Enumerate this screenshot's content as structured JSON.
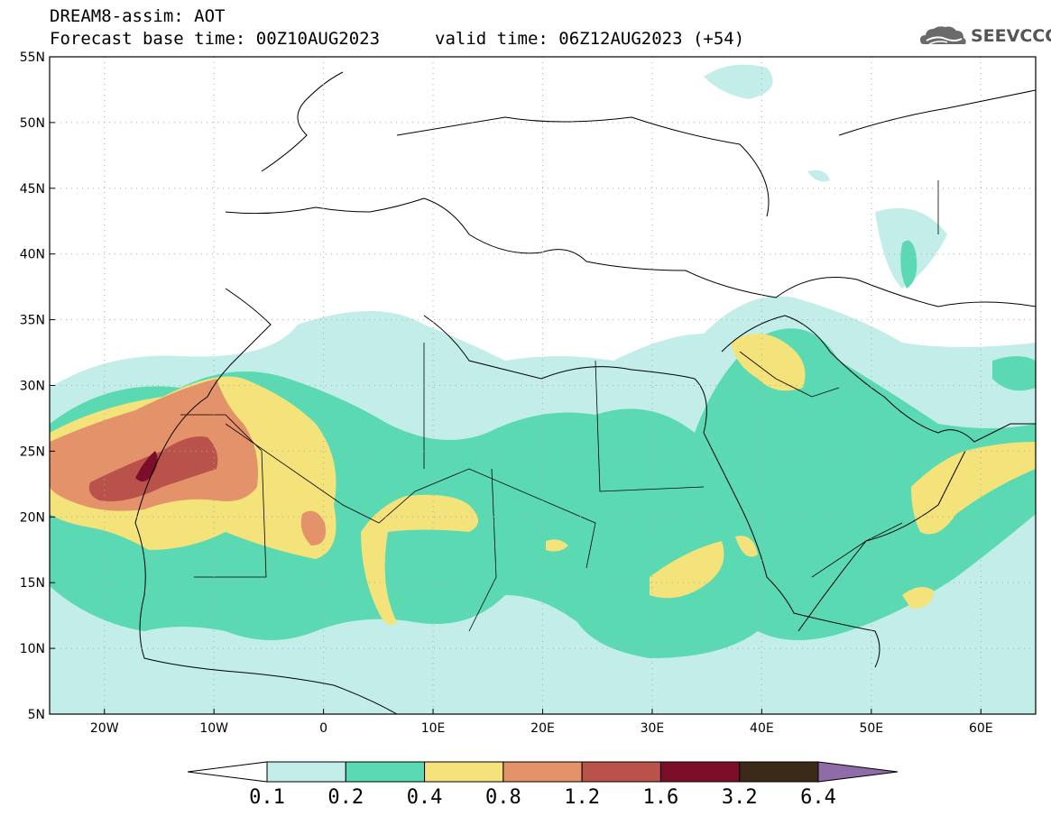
{
  "header": {
    "title": "DREAM8-assim: AOT",
    "base_time": "Forecast base time: 00Z10AUG2023",
    "valid_time": "valid time: 06Z12AUG2023 (+54)"
  },
  "logo": {
    "text": "SEEVCCC",
    "icon": "cloud-logo-icon"
  },
  "map": {
    "region": "North Africa, Middle East, Europe",
    "lon_range": [
      -25,
      65
    ],
    "lat_range": [
      5,
      55
    ],
    "lat_ticks": [
      {
        "value": 55,
        "label": "55N"
      },
      {
        "value": 50,
        "label": "50N"
      },
      {
        "value": 45,
        "label": "45N"
      },
      {
        "value": 40,
        "label": "40N"
      },
      {
        "value": 35,
        "label": "35N"
      },
      {
        "value": 30,
        "label": "30N"
      },
      {
        "value": 25,
        "label": "25N"
      },
      {
        "value": 20,
        "label": "20N"
      },
      {
        "value": 15,
        "label": "15N"
      },
      {
        "value": 10,
        "label": "10N"
      },
      {
        "value": 5,
        "label": "5N"
      }
    ],
    "lon_ticks": [
      {
        "value": -20,
        "label": "20W"
      },
      {
        "value": -10,
        "label": "10W"
      },
      {
        "value": 0,
        "label": "0"
      },
      {
        "value": 10,
        "label": "10E"
      },
      {
        "value": 20,
        "label": "20E"
      },
      {
        "value": 30,
        "label": "30E"
      },
      {
        "value": 40,
        "label": "40E"
      },
      {
        "value": 50,
        "label": "50E"
      },
      {
        "value": 60,
        "label": "60E"
      }
    ],
    "grid": "dotted"
  },
  "colorbar": {
    "labels": [
      "0.1",
      "0.2",
      "0.4",
      "0.8",
      "1.2",
      "1.6",
      "3.2",
      "6.4"
    ],
    "colors": [
      "#ffffff",
      "#c2ede8",
      "#5ad9b2",
      "#f4e27a",
      "#e4926a",
      "#b9524a",
      "#7d0e2a",
      "#3b2a18",
      "#8f6ba8"
    ]
  }
}
